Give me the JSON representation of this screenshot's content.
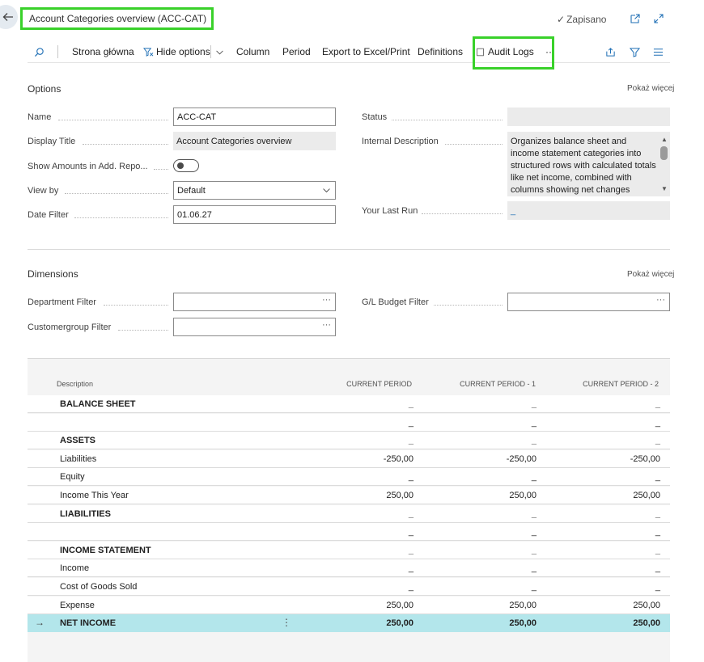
{
  "header": {
    "title": "Account Categories overview (ACC-CAT)",
    "saved_status": "Zapisano",
    "icons": [
      "back-arrow-icon",
      "open-new-window-icon",
      "expand-icon"
    ]
  },
  "actionbar": {
    "home": "Strona główna",
    "hide_options": "Hide options",
    "column": "Column",
    "period": "Period",
    "export": "Export to Excel/Print",
    "definitions": "Definitions",
    "audit_logs": "Audit Logs",
    "more": "···"
  },
  "options": {
    "title": "Options",
    "show_more": "Pokaż więcej",
    "name_label": "Name",
    "name_value": "ACC-CAT",
    "display_title_label": "Display Title",
    "display_title_value": "Account Categories overview",
    "show_amounts_label": "Show Amounts in Add. Repo...",
    "show_amounts_value": false,
    "view_by_label": "View by",
    "view_by_value": "Default",
    "date_filter_label": "Date Filter",
    "date_filter_value": "01.06.27",
    "status_label": "Status",
    "status_value": "",
    "internal_desc_label": "Internal Description",
    "internal_desc_value": "Organizes balance sheet and income statement categories into structured rows with calculated totals like net income, combined with columns showing net changes",
    "last_run_label": "Your Last Run",
    "last_run_value": "_"
  },
  "dimensions": {
    "title": "Dimensions",
    "show_more": "Pokaż więcej",
    "department_label": "Department Filter",
    "customergroup_label": "Customergroup Filter",
    "budget_label": "G/L Budget Filter",
    "lookup": "···"
  },
  "grid": {
    "columns": [
      "Description",
      "CURRENT PERIOD",
      "CURRENT PERIOD - 1",
      "CURRENT PERIOD - 2"
    ],
    "rows": [
      {
        "desc": "BALANCE SHEET",
        "bold": true,
        "v": [
          "_",
          "_",
          "_"
        ]
      },
      {
        "desc": "",
        "bold": false,
        "v": [
          "_",
          "_",
          "_"
        ]
      },
      {
        "desc": "ASSETS",
        "bold": true,
        "v": [
          "_",
          "_",
          "_"
        ]
      },
      {
        "desc": "Liabilities",
        "bold": false,
        "v": [
          "-250,00",
          "-250,00",
          "-250,00"
        ]
      },
      {
        "desc": "Equity",
        "bold": false,
        "v": [
          "_",
          "_",
          "_"
        ]
      },
      {
        "desc": "Income This Year",
        "bold": false,
        "v": [
          "250,00",
          "250,00",
          "250,00"
        ]
      },
      {
        "desc": "LIABILITIES",
        "bold": true,
        "v": [
          "_",
          "_",
          "_"
        ]
      },
      {
        "desc": "",
        "bold": false,
        "v": [
          "_",
          "_",
          "_"
        ]
      },
      {
        "desc": "INCOME STATEMENT",
        "bold": true,
        "v": [
          "_",
          "_",
          "_"
        ]
      },
      {
        "desc": "Income",
        "bold": false,
        "v": [
          "_",
          "_",
          "_"
        ]
      },
      {
        "desc": "Cost of Goods Sold",
        "bold": false,
        "v": [
          "_",
          "_",
          "_"
        ]
      },
      {
        "desc": "Expense",
        "bold": false,
        "v": [
          "250,00",
          "250,00",
          "250,00"
        ]
      },
      {
        "desc": "NET INCOME",
        "bold": true,
        "v": [
          "250,00",
          "250,00",
          "250,00"
        ],
        "selected": true
      }
    ],
    "row_arrow": "→",
    "row_menu": "⋮"
  },
  "colors": {
    "highlight": "#39d12a",
    "selected_row": "#b3e6eb",
    "accent": "#1f6fb5"
  }
}
